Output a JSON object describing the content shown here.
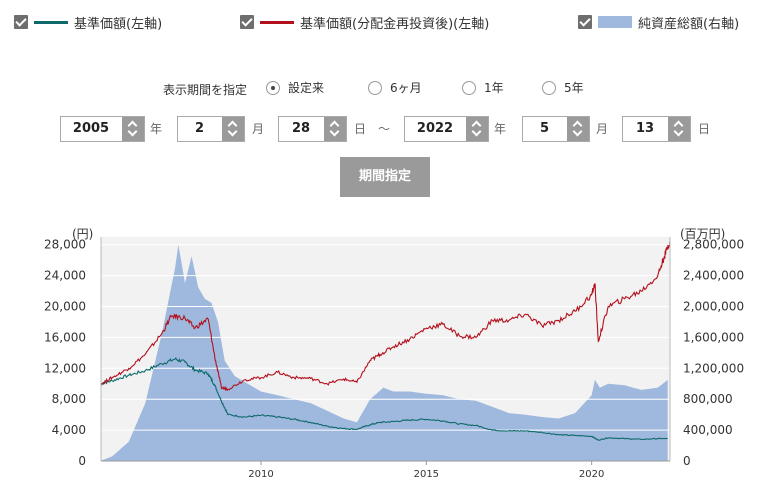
{
  "legend": [
    {
      "label": "基準価額(左軸)",
      "color": "#0e6a6a",
      "kind": "line"
    },
    {
      "label": "基準価額(分配金再投資後)(左軸)",
      "color": "#b3101d",
      "kind": "line"
    },
    {
      "label": "純資産総額(右軸)",
      "color": "#9fb8de",
      "kind": "area"
    }
  ],
  "period": {
    "label": "表示期間を指定",
    "options": [
      {
        "label": "設定来",
        "selected": true
      },
      {
        "label": "6ヶ月",
        "selected": false
      },
      {
        "label": "1年",
        "selected": false
      },
      {
        "label": "5年",
        "selected": false
      }
    ]
  },
  "date_range": {
    "from": {
      "year": "2005",
      "month": "2",
      "day": "28"
    },
    "to": {
      "year": "2022",
      "month": "5",
      "day": "13"
    },
    "year_unit": "年",
    "month_unit": "月",
    "day_unit": "日",
    "separator": "〜"
  },
  "apply_button": "期間指定",
  "chart_data": {
    "type": "line",
    "left_axis_unit": "(円)",
    "right_axis_unit": "(百万円)",
    "left_ticks": [
      "28,000",
      "24,000",
      "20,000",
      "16,000",
      "12,000",
      "8,000",
      "4,000",
      "0"
    ],
    "right_ticks": [
      "2,800,000",
      "2,400,000",
      "2,000,000",
      "1,600,000",
      "1,200,000",
      "800,000",
      "400,000",
      "0"
    ],
    "x_ticks": [
      "2010",
      "2015",
      "2020"
    ],
    "ylim_left": [
      0,
      29000
    ],
    "ylim_right": [
      0,
      2900000
    ],
    "xlim": [
      2005.16,
      2022.37
    ],
    "series": [
      {
        "name": "基準価額(左軸)",
        "axis": "left",
        "color": "#0e6a6a",
        "x": [
          2005.16,
          2005.5,
          2006.0,
          2006.5,
          2007.0,
          2007.4,
          2007.7,
          2008.0,
          2008.4,
          2008.6,
          2008.8,
          2009.0,
          2009.5,
          2010.0,
          2010.5,
          2011.0,
          2011.5,
          2012.0,
          2012.5,
          2012.9,
          2013.3,
          2013.6,
          2014.0,
          2014.5,
          2015.0,
          2015.5,
          2016.0,
          2016.5,
          2017.0,
          2017.5,
          2018.0,
          2018.5,
          2019.0,
          2019.5,
          2020.0,
          2020.2,
          2020.5,
          2021.0,
          2021.5,
          2022.0,
          2022.3
        ],
        "y": [
          10000,
          10400,
          11100,
          11700,
          12600,
          13200,
          12800,
          11800,
          11300,
          9800,
          7800,
          6000,
          5700,
          5900,
          5700,
          5400,
          5000,
          4500,
          4200,
          4100,
          4700,
          5000,
          5100,
          5300,
          5400,
          5200,
          4800,
          4600,
          4000,
          3900,
          3900,
          3700,
          3400,
          3300,
          3200,
          2700,
          3000,
          2900,
          2800,
          2900,
          2900
        ]
      },
      {
        "name": "基準価額(分配金再投資後)(左軸)",
        "axis": "left",
        "color": "#b3101d",
        "x": [
          2005.16,
          2005.5,
          2006.0,
          2006.5,
          2007.0,
          2007.3,
          2007.7,
          2008.0,
          2008.4,
          2008.6,
          2008.8,
          2009.0,
          2009.5,
          2010.0,
          2010.5,
          2011.0,
          2011.5,
          2012.0,
          2012.5,
          2012.9,
          2013.3,
          2013.6,
          2014.0,
          2014.5,
          2015.0,
          2015.5,
          2016.0,
          2016.5,
          2017.0,
          2017.5,
          2018.0,
          2018.5,
          2019.0,
          2019.5,
          2020.0,
          2020.1,
          2020.2,
          2020.5,
          2021.0,
          2021.5,
          2022.0,
          2022.2,
          2022.37
        ],
        "y": [
          10000,
          10800,
          12000,
          13800,
          16500,
          18800,
          18500,
          17200,
          18400,
          13500,
          9500,
          9300,
          10500,
          10800,
          11500,
          10800,
          10700,
          10000,
          10600,
          10200,
          13000,
          13800,
          14800,
          15800,
          17200,
          17700,
          16200,
          16000,
          18200,
          18200,
          19000,
          17500,
          18200,
          19400,
          21500,
          23000,
          15500,
          20000,
          21000,
          22000,
          24000,
          26500,
          28500
        ]
      },
      {
        "name": "純資産総額(右軸)",
        "axis": "right",
        "color": "#9fb8de",
        "x": [
          2005.16,
          2005.5,
          2006.0,
          2006.5,
          2007.0,
          2007.4,
          2007.5,
          2007.7,
          2007.9,
          2008.1,
          2008.3,
          2008.5,
          2008.7,
          2008.9,
          2009.2,
          2009.6,
          2010.0,
          2010.5,
          2011.0,
          2011.5,
          2012.0,
          2012.5,
          2012.9,
          2013.3,
          2013.7,
          2014.0,
          2014.5,
          2015.0,
          2015.5,
          2016.0,
          2016.5,
          2017.0,
          2017.5,
          2018.0,
          2018.5,
          2019.0,
          2019.5,
          2020.0,
          2020.1,
          2020.25,
          2020.5,
          2021.0,
          2021.5,
          2022.0,
          2022.3
        ],
        "y": [
          5000,
          60000,
          250000,
          750000,
          1650000,
          2500000,
          2800000,
          2300000,
          2650000,
          2250000,
          2100000,
          2050000,
          1800000,
          1300000,
          1100000,
          1000000,
          900000,
          850000,
          800000,
          750000,
          650000,
          550000,
          500000,
          800000,
          950000,
          900000,
          900000,
          870000,
          850000,
          800000,
          780000,
          700000,
          620000,
          600000,
          570000,
          550000,
          620000,
          850000,
          1050000,
          950000,
          1000000,
          980000,
          920000,
          950000,
          1050000
        ]
      }
    ]
  }
}
